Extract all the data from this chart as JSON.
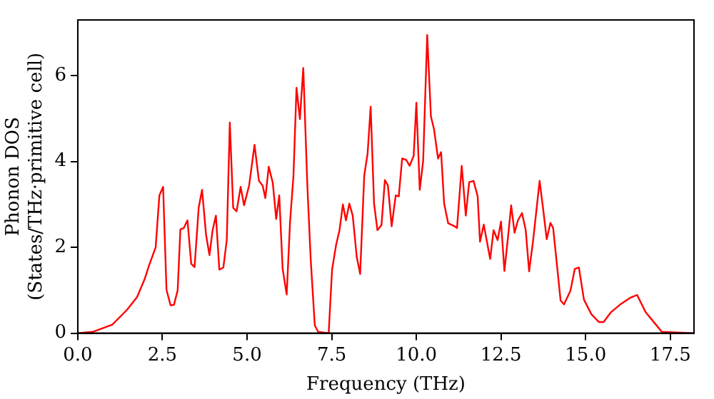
{
  "chart_data": {
    "type": "line",
    "xlabel": "Frequency (THz)",
    "ylabel": "Phonon DOS\n(States/THz·primitive cell)",
    "x": [
      0,
      0.44,
      1.02,
      1.46,
      1.75,
      1.97,
      2.11,
      2.3,
      2.41,
      2.52,
      2.62,
      2.74,
      2.84,
      2.95,
      3.03,
      3.13,
      3.24,
      3.35,
      3.45,
      3.57,
      3.67,
      3.79,
      3.89,
      3.98,
      4.08,
      4.18,
      4.3,
      4.4,
      4.49,
      4.59,
      4.69,
      4.81,
      4.91,
      5.06,
      5.22,
      5.35,
      5.46,
      5.54,
      5.64,
      5.76,
      5.86,
      5.95,
      6.05,
      6.17,
      6.27,
      6.37,
      6.46,
      6.56,
      6.66,
      6.78,
      6.88,
      7.0,
      7.1,
      7.41,
      7.51,
      7.63,
      7.73,
      7.83,
      7.92,
      8.02,
      8.12,
      8.24,
      8.34,
      8.46,
      8.56,
      8.65,
      8.75,
      8.85,
      8.97,
      9.07,
      9.16,
      9.27,
      9.39,
      9.48,
      9.58,
      9.7,
      9.8,
      9.92,
      10.0,
      10.1,
      10.2,
      10.32,
      10.43,
      10.52,
      10.64,
      10.73,
      10.82,
      10.94,
      11.11,
      11.2,
      11.34,
      11.46,
      11.56,
      11.69,
      11.81,
      11.88,
      11.99,
      12.18,
      12.28,
      12.4,
      12.5,
      12.6,
      12.72,
      12.8,
      12.9,
      13.0,
      13.12,
      13.23,
      13.33,
      13.45,
      13.64,
      13.74,
      13.85,
      13.96,
      14.04,
      14.26,
      14.36,
      14.55,
      14.68,
      14.8,
      14.95,
      15.17,
      15.39,
      15.53,
      15.75,
      16.04,
      16.33,
      16.52,
      16.77,
      16.98,
      17.25,
      18.18
    ],
    "series": [
      {
        "color": "#ff0000",
        "values": [
          0,
          0.03,
          0.2,
          0.55,
          0.84,
          1.25,
          1.59,
          2.0,
          3.21,
          3.41,
          1.01,
          0.65,
          0.66,
          1.0,
          2.42,
          2.45,
          2.63,
          1.62,
          1.54,
          2.92,
          3.34,
          2.28,
          1.82,
          2.39,
          2.74,
          1.48,
          1.53,
          2.17,
          4.91,
          2.92,
          2.84,
          3.41,
          2.98,
          3.44,
          4.39,
          3.55,
          3.44,
          3.15,
          3.88,
          3.5,
          2.66,
          3.21,
          1.5,
          0.9,
          2.6,
          3.67,
          5.72,
          4.99,
          6.18,
          3.44,
          1.71,
          0.18,
          0.03,
          0,
          1.48,
          2.06,
          2.4,
          3.0,
          2.63,
          3.02,
          2.74,
          1.77,
          1.38,
          3.67,
          4.19,
          5.28,
          3.02,
          2.4,
          2.52,
          3.57,
          3.44,
          2.49,
          3.21,
          3.19,
          4.07,
          4.04,
          3.9,
          4.13,
          5.37,
          3.34,
          4.01,
          6.95,
          5.05,
          4.76,
          4.07,
          4.22,
          3.02,
          2.56,
          2.5,
          2.45,
          3.9,
          2.74,
          3.52,
          3.55,
          3.19,
          2.13,
          2.53,
          1.73,
          2.4,
          2.17,
          2.6,
          1.45,
          2.34,
          2.98,
          2.34,
          2.63,
          2.8,
          2.4,
          1.44,
          2.17,
          3.55,
          2.92,
          2.19,
          2.57,
          2.45,
          0.76,
          0.67,
          0.99,
          1.5,
          1.53,
          0.78,
          0.44,
          0.26,
          0.26,
          0.49,
          0.68,
          0.83,
          0.89,
          0.49,
          0.29,
          0.03,
          0
        ]
      }
    ],
    "xlim": [
      0,
      18.2
    ],
    "ylim": [
      0,
      7.3
    ],
    "xticks": [
      {
        "value": 0,
        "label": "0.0"
      },
      {
        "value": 2.5,
        "label": "2.5"
      },
      {
        "value": 5,
        "label": "5.0"
      },
      {
        "value": 7.5,
        "label": "7.5"
      },
      {
        "value": 10,
        "label": "10.0"
      },
      {
        "value": 12.5,
        "label": "12.5"
      },
      {
        "value": 15,
        "label": "15.0"
      },
      {
        "value": 17.5,
        "label": "17.5"
      }
    ],
    "yticks": [
      0,
      2,
      4,
      6
    ],
    "grid": false,
    "legend": false,
    "line_style": "solid"
  }
}
